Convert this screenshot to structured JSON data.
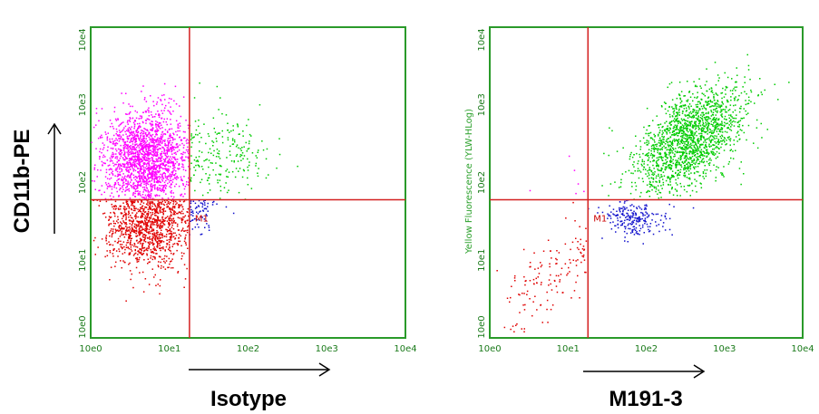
{
  "chart_data": [
    {
      "type": "scatter",
      "panel": "left",
      "xlabel": "Isotype",
      "ylabel": "CD11b-PE",
      "ylabel_small": "",
      "xscale": "log",
      "yscale": "log",
      "xlim": [
        1,
        10000
      ],
      "ylim": [
        1,
        10000
      ],
      "x_ticks": [
        "10e0",
        "10e1",
        "10e2",
        "10e3",
        "10e4"
      ],
      "y_ticks": [
        "10e0",
        "10e1",
        "10e2",
        "10e3",
        "10e4"
      ],
      "quadrant_x": 18,
      "quadrant_y": 60,
      "gate_label": "M1",
      "grid": false,
      "colors": {
        "frame": "#2a9a2a",
        "quadrant": "#d42020",
        "magenta": "#ff00ff",
        "green": "#00cc00",
        "red": "#e00000",
        "blue": "#1010cc"
      },
      "series": [
        {
          "color": "magenta",
          "count": 1800,
          "x_log_mean": 0.7,
          "x_log_sd": 0.28,
          "y_log_mean": 2.3,
          "y_log_sd": 0.32,
          "x_log_range": [
            0,
            1.25
          ],
          "y_log_range": [
            1.78,
            4
          ]
        },
        {
          "color": "green",
          "count": 220,
          "x_log_mean": 1.55,
          "x_log_sd": 0.35,
          "y_log_mean": 2.35,
          "y_log_sd": 0.3,
          "x_log_range": [
            1.25,
            4
          ],
          "y_log_range": [
            1.78,
            4
          ]
        },
        {
          "color": "red",
          "count": 1100,
          "x_log_mean": 0.75,
          "x_log_sd": 0.28,
          "y_log_mean": 1.5,
          "y_log_sd": 0.3,
          "x_log_range": [
            0,
            1.25
          ],
          "y_log_range": [
            0,
            1.78
          ]
        },
        {
          "color": "blue",
          "count": 70,
          "x_log_mean": 1.4,
          "x_log_sd": 0.15,
          "y_log_mean": 1.6,
          "y_log_sd": 0.12,
          "x_log_range": [
            1.25,
            4
          ],
          "y_log_range": [
            0,
            1.78
          ]
        }
      ]
    },
    {
      "type": "scatter",
      "panel": "right",
      "xlabel": "M191-3",
      "ylabel": "",
      "ylabel_small": "Yellow Fluorescence (YLW-HLog)",
      "xscale": "log",
      "yscale": "log",
      "xlim": [
        1,
        10000
      ],
      "ylim": [
        1,
        10000
      ],
      "x_ticks": [
        "10e0",
        "10e1",
        "10e2",
        "10e3",
        "10e4"
      ],
      "y_ticks": [
        "10e0",
        "10e1",
        "10e2",
        "10e3",
        "10e4"
      ],
      "quadrant_x": 18,
      "quadrant_y": 60,
      "gate_label": "M1",
      "grid": false,
      "colors": {
        "frame": "#2a9a2a",
        "quadrant": "#d42020",
        "magenta": "#ff00ff",
        "green": "#00cc00",
        "red": "#e00000",
        "blue": "#1010cc"
      },
      "series": [
        {
          "color": "green",
          "count": 1700,
          "diagonal": true,
          "t_mean": 2.55,
          "t_sd": 0.3,
          "offset_sd": 0.17,
          "x_log_range": [
            1.25,
            4
          ],
          "y_log_range": [
            1.78,
            4
          ]
        },
        {
          "color": "blue",
          "count": 220,
          "x_log_mean": 1.85,
          "x_log_sd": 0.2,
          "y_log_mean": 1.55,
          "y_log_sd": 0.13,
          "x_log_range": [
            1.25,
            4
          ],
          "y_log_range": [
            1.2,
            1.78
          ]
        },
        {
          "color": "red",
          "count": 140,
          "diagonal": true,
          "t_mean": 0.85,
          "t_sd": 0.35,
          "offset_sd": 0.15,
          "x_log_range": [
            0,
            1.25
          ],
          "y_log_range": [
            0,
            1.78
          ]
        },
        {
          "color": "magenta",
          "count": 6,
          "x_log_mean": 1.0,
          "x_log_sd": 0.2,
          "y_log_mean": 2.0,
          "y_log_sd": 0.3,
          "x_log_range": [
            0,
            1.25
          ],
          "y_log_range": [
            1.78,
            4
          ]
        }
      ]
    }
  ]
}
